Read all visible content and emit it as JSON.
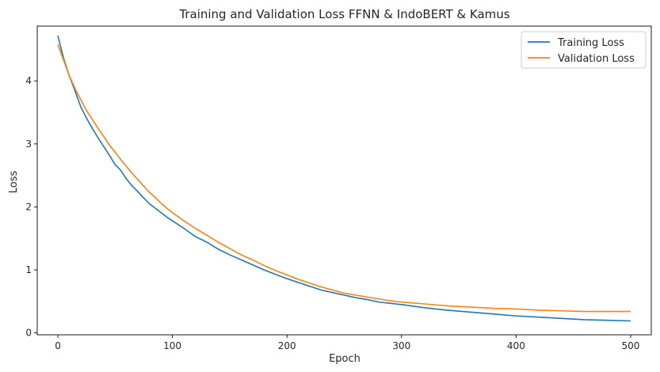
{
  "chart_data": {
    "type": "line",
    "title": "Training and Validation Loss FFNN & IndoBERT & Kamus",
    "xlabel": "Epoch",
    "ylabel": "Loss",
    "xlim": [
      -18,
      518
    ],
    "ylim": [
      -0.03,
      4.87
    ],
    "xticks": [
      0,
      100,
      200,
      300,
      400,
      500
    ],
    "yticks": [
      0,
      1,
      2,
      3,
      4
    ],
    "grid": false,
    "legend_position": "top-right",
    "series": [
      {
        "name": "Training Loss",
        "color": "#1f77b4",
        "x": [
          0,
          5,
          10,
          15,
          20,
          25,
          30,
          35,
          40,
          45,
          50,
          55,
          60,
          65,
          70,
          75,
          80,
          85,
          90,
          95,
          100,
          110,
          120,
          130,
          140,
          150,
          160,
          170,
          180,
          190,
          200,
          210,
          220,
          230,
          240,
          250,
          260,
          270,
          280,
          290,
          300,
          320,
          340,
          360,
          380,
          400,
          420,
          440,
          460,
          480,
          500
        ],
        "y": [
          4.72,
          4.36,
          4.08,
          3.84,
          3.59,
          3.41,
          3.25,
          3.1,
          2.96,
          2.82,
          2.67,
          2.58,
          2.44,
          2.33,
          2.24,
          2.14,
          2.05,
          1.98,
          1.91,
          1.84,
          1.78,
          1.66,
          1.53,
          1.44,
          1.33,
          1.24,
          1.16,
          1.08,
          1.0,
          0.93,
          0.86,
          0.8,
          0.74,
          0.68,
          0.64,
          0.6,
          0.56,
          0.53,
          0.49,
          0.47,
          0.45,
          0.4,
          0.36,
          0.33,
          0.3,
          0.27,
          0.25,
          0.23,
          0.21,
          0.2,
          0.19
        ]
      },
      {
        "name": "Validation Loss",
        "color": "#ff7f0e",
        "x": [
          0,
          5,
          10,
          15,
          20,
          25,
          30,
          35,
          40,
          45,
          50,
          55,
          60,
          65,
          70,
          75,
          80,
          85,
          90,
          95,
          100,
          110,
          120,
          130,
          140,
          150,
          160,
          170,
          180,
          190,
          200,
          210,
          220,
          230,
          240,
          250,
          260,
          270,
          280,
          290,
          300,
          320,
          340,
          360,
          380,
          400,
          420,
          440,
          460,
          480,
          500
        ],
        "y": [
          4.58,
          4.33,
          4.08,
          3.88,
          3.7,
          3.53,
          3.39,
          3.25,
          3.12,
          2.98,
          2.87,
          2.75,
          2.64,
          2.53,
          2.43,
          2.33,
          2.23,
          2.15,
          2.06,
          1.98,
          1.91,
          1.78,
          1.66,
          1.55,
          1.44,
          1.34,
          1.24,
          1.16,
          1.07,
          0.99,
          0.92,
          0.85,
          0.79,
          0.73,
          0.68,
          0.63,
          0.6,
          0.57,
          0.54,
          0.51,
          0.49,
          0.46,
          0.43,
          0.41,
          0.39,
          0.38,
          0.36,
          0.35,
          0.34,
          0.34,
          0.34
        ]
      }
    ]
  }
}
